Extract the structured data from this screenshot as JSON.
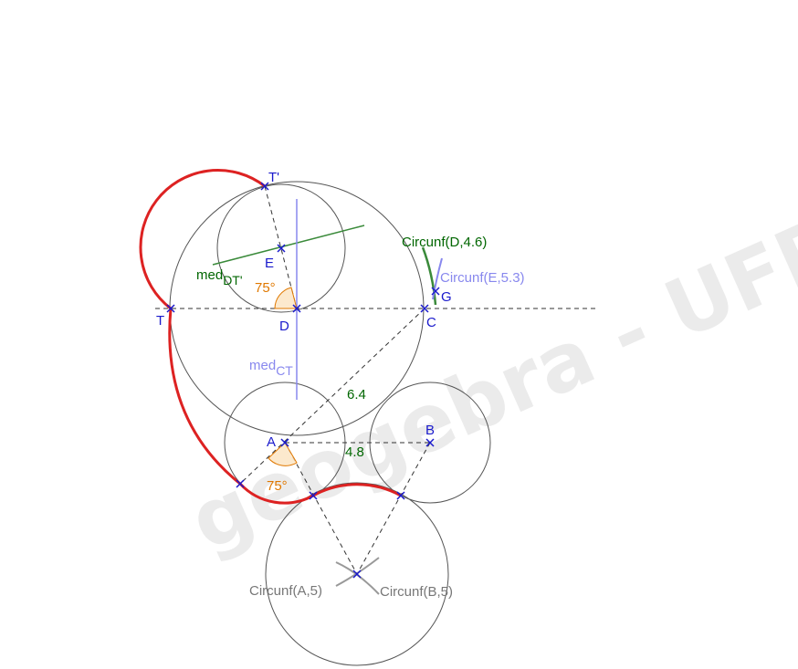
{
  "watermark": "geogebra - UFPR",
  "points": {
    "T_prime": "T'",
    "E": "E",
    "T": "T",
    "D": "D",
    "C": "C",
    "G": "G",
    "A": "A",
    "B": "B"
  },
  "labels": {
    "circunf_D": "Circunf(D,4.6)",
    "circunf_E": "Circunf(E,5.3)",
    "circunf_A": "Circunf(A,5)",
    "circunf_B": "Circunf(B,5)",
    "med_dt": "med",
    "med_dt_sub": "DT'",
    "med_ct": "med",
    "med_ct_sub": "CT",
    "angle_top": "75°",
    "angle_bottom": "75°",
    "dist_ac": "6.4",
    "dist_ab": "4.8"
  },
  "colors": {
    "curve": "#dd2222",
    "points": "#1a1acc",
    "mediatrix_dt": "#3a8a3a",
    "mediatrix_ct": "#8888ee",
    "angle": "#e07800",
    "circles": "#555555"
  }
}
